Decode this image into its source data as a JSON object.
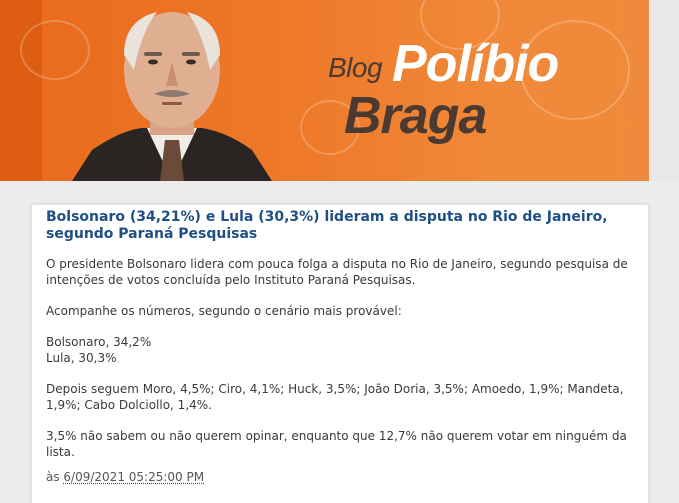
{
  "banner": {
    "blog_word": "Blog",
    "name_first": "Políbio",
    "name_last": "Braga"
  },
  "post": {
    "title": "Bolsonaro (34,21%) e Lula (30,3%) lideram a disputa no Rio de Janeiro, segundo Paraná Pesquisas",
    "paragraphs": [
      " O presidente Bolsonaro lidera com pouca folga a disputa no Rio de Janeiro, segundo pesquisa de intenções de votos concluída pelo Instituto Paraná Pesquisas.",
      "Acompanhe os números, segundo o cenário mais provável:"
    ],
    "results_line1": "Bolsonaro, 34,2%",
    "results_line2": "Lula, 30,3%",
    "others": "Depois seguem Moro, 4,5%; Ciro, 4,1%; Huck, 3,5%; João Doria, 3,5%; Amoedo, 1,9%; Mandeta, 1,9%; Cabo Dolciollo, 1,4%.",
    "undecided": "3,5% não sabem ou não querem opinar, enquanto que 12,7% não querem votar em ninguém da lista.",
    "footer_prefix": "às ",
    "timestamp": "6/09/2021 05:25:00 PM"
  },
  "colors": {
    "banner_orange": "#ee7a2a",
    "title_blue": "#1f4f87",
    "logo_dark": "#4a3a32"
  }
}
